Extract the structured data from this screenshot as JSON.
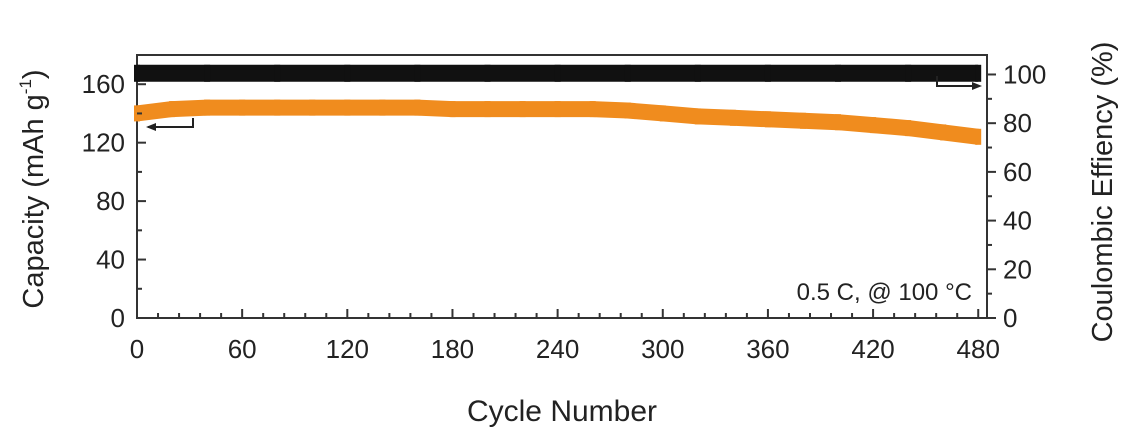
{
  "chart_data": {
    "type": "scatter",
    "xlabel": "Cycle Number",
    "ylabel_left": "Capacity (mAh g",
    "ylabel_left_sup": "-1",
    "ylabel_left_end": ")",
    "ylabel_right": "Coulombic Effiency (%)",
    "annotation": "0.5 C, @ 100 °C",
    "xlim": [
      0,
      485
    ],
    "ylim_left": [
      0,
      180
    ],
    "ylim_right": [
      0,
      108
    ],
    "x_ticks": [
      "0",
      "60",
      "120",
      "180",
      "240",
      "300",
      "360",
      "420",
      "480"
    ],
    "y_ticks_left": [
      "0",
      "40",
      "80",
      "120",
      "160"
    ],
    "y_ticks_right": [
      "0",
      "20",
      "40",
      "60",
      "80",
      "100"
    ],
    "series": [
      {
        "axis": "left",
        "color": "#F08C1E",
        "x": [
          0,
          20,
          40,
          60,
          80,
          100,
          120,
          140,
          160,
          180,
          200,
          220,
          240,
          260,
          280,
          300,
          320,
          340,
          360,
          380,
          400,
          420,
          440,
          460,
          480
        ],
        "y": [
          140,
          143,
          144,
          144,
          144,
          144,
          144,
          144,
          144,
          143,
          143,
          143,
          143,
          143,
          142,
          140,
          138,
          137,
          136,
          135,
          134,
          132,
          130,
          127,
          124
        ]
      },
      {
        "axis": "right",
        "color": "#111111",
        "x": [
          0,
          40,
          80,
          120,
          160,
          200,
          240,
          280,
          320,
          360,
          400,
          440,
          480
        ],
        "y": [
          100.5,
          100.5,
          100.5,
          100.5,
          100.5,
          100.5,
          100.5,
          100.5,
          100.5,
          100.5,
          100.5,
          100.5,
          100.5
        ]
      }
    ]
  }
}
